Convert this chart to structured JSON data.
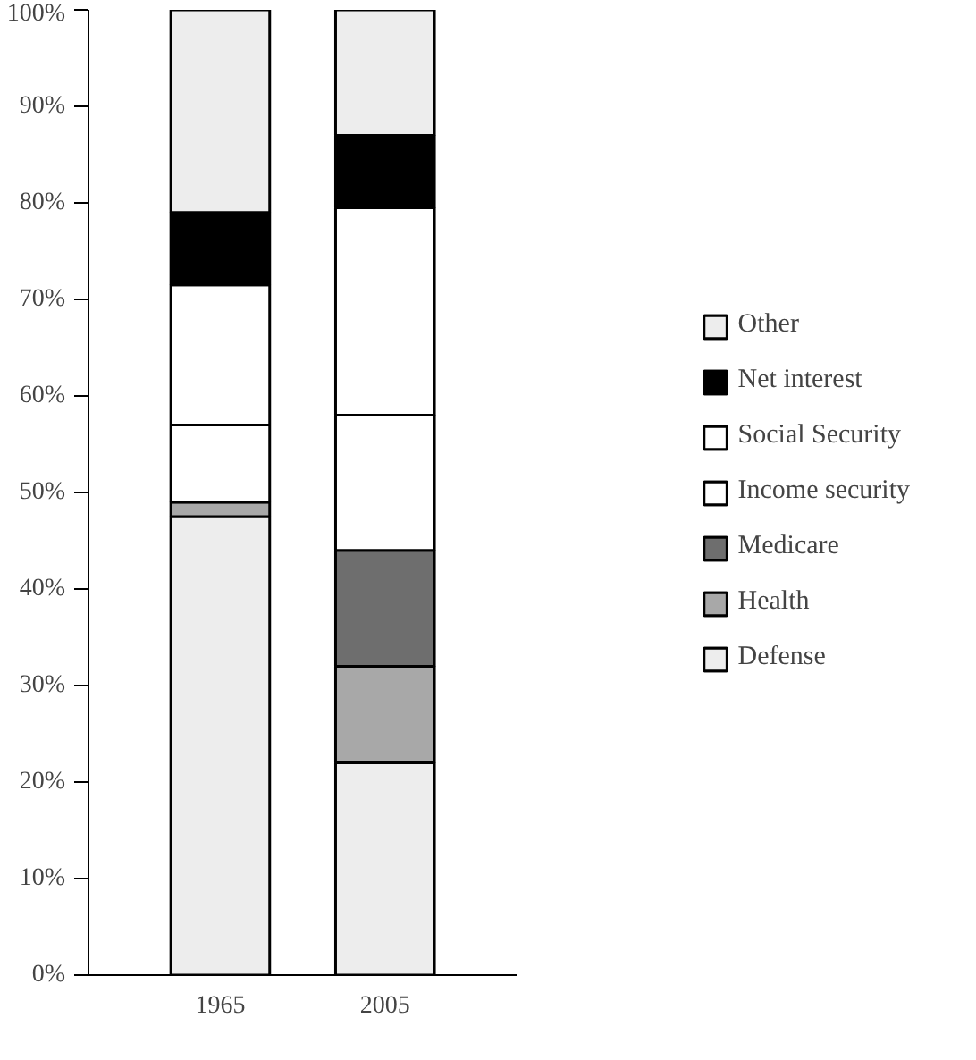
{
  "chart_data": {
    "type": "bar",
    "stacked": true,
    "categories": [
      "1965",
      "2005"
    ],
    "series": [
      {
        "name": "Defense",
        "color": "#ededed",
        "values": [
          47.5,
          22
        ]
      },
      {
        "name": "Health",
        "color": "#a8a8a8",
        "values": [
          1.5,
          10
        ]
      },
      {
        "name": "Medicare",
        "color": "#6e6e6e",
        "values": [
          0,
          12
        ]
      },
      {
        "name": "Income security",
        "color": "#ffffff",
        "values": [
          8,
          14
        ]
      },
      {
        "name": "Social Security",
        "color": "#ffffff",
        "values": [
          14.5,
          21.5
        ]
      },
      {
        "name": "Net interest",
        "color": "#000000",
        "values": [
          7.5,
          7.5
        ]
      },
      {
        "name": "Other",
        "color": "#ededed",
        "values": [
          21,
          13
        ]
      }
    ],
    "ylim": [
      0,
      100
    ],
    "yticks": [
      {
        "value": 0,
        "label": "0%"
      },
      {
        "value": 10,
        "label": "10%"
      },
      {
        "value": 20,
        "label": "20%"
      },
      {
        "value": 30,
        "label": "30%"
      },
      {
        "value": 40,
        "label": "40%"
      },
      {
        "value": 50,
        "label": "50%"
      },
      {
        "value": 60,
        "label": "60%"
      },
      {
        "value": 70,
        "label": "70%"
      },
      {
        "value": 80,
        "label": "80%"
      },
      {
        "value": 90,
        "label": "90%"
      },
      {
        "value": 100,
        "label": "100%"
      }
    ],
    "grid": false,
    "legend": "right"
  }
}
